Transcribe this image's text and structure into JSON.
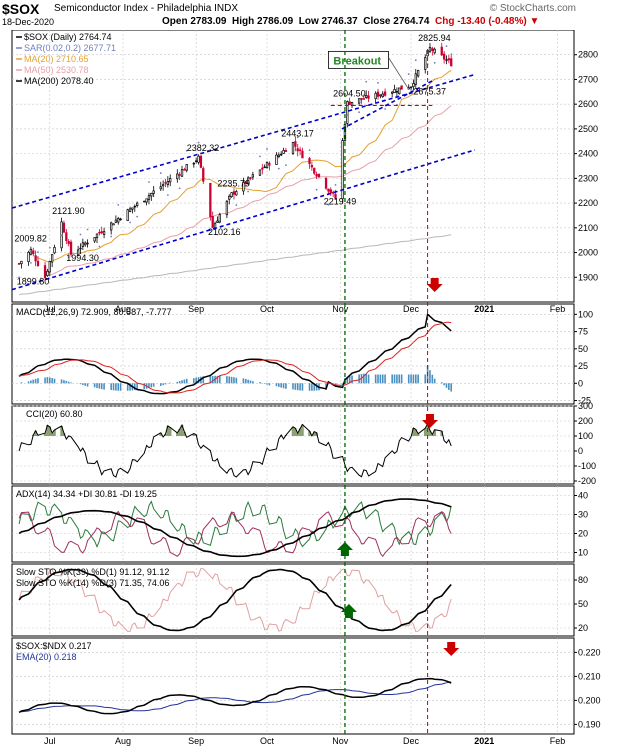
{
  "header": {
    "ticker": "$SOX",
    "name": "Semiconductor Index - Philadelphia",
    "exchange": "INDX",
    "watermark": "© StockCharts.com",
    "date": "18-Dec-2020",
    "open": "Open 2783.09",
    "high": "High 2786.09",
    "low": "Low 2746.37",
    "close": "Close 2764.74",
    "chg": "Chg -13.40 (-0.48%) ▼"
  },
  "chart_data": [
    {
      "type": "candlestick",
      "legend": [
        "$SOX (Daily) 2764.74",
        "SAR(0.02,0.2) 2677.71",
        "MA(20) 2710.65",
        "MA(50) 2530.78",
        "MA(200) 2078.40"
      ],
      "colors": {
        "up": "#000000",
        "down": "#cc0033",
        "ma20": "#e6a030",
        "ma50": "#e8a0a8",
        "ma200": "#b8b8b8",
        "trend": "#0000cc",
        "vline1": "#006600",
        "vline2": "#cc0000"
      },
      "ylim": [
        1800,
        2900
      ],
      "yticks": [
        1900,
        2000,
        2100,
        2200,
        2300,
        2400,
        2500,
        2600,
        2700,
        2800
      ],
      "x_months": [
        "Jul",
        "Aug",
        "Sep",
        "Oct",
        "Nov",
        "Dec",
        "2021",
        "Feb"
      ],
      "annotations": [
        "2009.82",
        "1899.80",
        "2121.90",
        "1994.30",
        "2382.32",
        "2235.79",
        "2102.16",
        "2443.17",
        "2604.50",
        "2219.49",
        "2825.94",
        "2675.37",
        "Breakout"
      ],
      "key_points": [
        {
          "date": "2020-06-23",
          "value": 2009.82
        },
        {
          "date": "2020-06-29",
          "value": 1899.8
        },
        {
          "date": "2020-07-06",
          "value": 2121.9
        },
        {
          "date": "2020-07-10",
          "value": 1994.3
        },
        {
          "date": "2020-09-02",
          "value": 2382.32
        },
        {
          "date": "2020-09-08",
          "value": 2102.16
        },
        {
          "date": "2020-09-16",
          "value": 2235.79
        },
        {
          "date": "2020-10-12",
          "value": 2443.17
        },
        {
          "date": "2020-10-30",
          "value": 2219.49
        },
        {
          "date": "2020-11-04",
          "value": 2604.5
        },
        {
          "date": "2020-12-01",
          "value": 2675.37
        },
        {
          "date": "2020-12-09",
          "value": 2825.94
        },
        {
          "date": "2020-12-18",
          "value": 2764.74
        }
      ]
    },
    {
      "type": "line",
      "title": "MACD(12,26,9) 72.909, 80.687, -7.777",
      "ylim": [
        -30,
        115
      ],
      "yticks": [
        100,
        75,
        50,
        25,
        0,
        -25
      ]
    },
    {
      "type": "line",
      "title": "CCI(20) 60.80",
      "ylim": [
        -220,
        300
      ],
      "yticks": [
        300,
        200,
        100,
        0,
        -100,
        -200
      ]
    },
    {
      "type": "line",
      "title": "ADX(14) 34.34 +DI 30.81 -DI 19.25",
      "ylim": [
        5,
        45
      ],
      "yticks": [
        40,
        30,
        20,
        10
      ]
    },
    {
      "type": "line",
      "title": "Slow STO %K(39) %D(1) 91.12, 91.12",
      "title2": "Slow STO %K(14) %D(3) 71.35, 74.06",
      "ylim": [
        10,
        100
      ],
      "yticks": [
        80,
        50,
        20
      ]
    },
    {
      "type": "line",
      "title": "$SOX:$NDX 0.217",
      "title2": "EMA(20) 0.218",
      "ylim": [
        0.186,
        0.226
      ],
      "yticks": [
        0.22,
        0.21,
        0.2,
        0.19
      ]
    }
  ]
}
